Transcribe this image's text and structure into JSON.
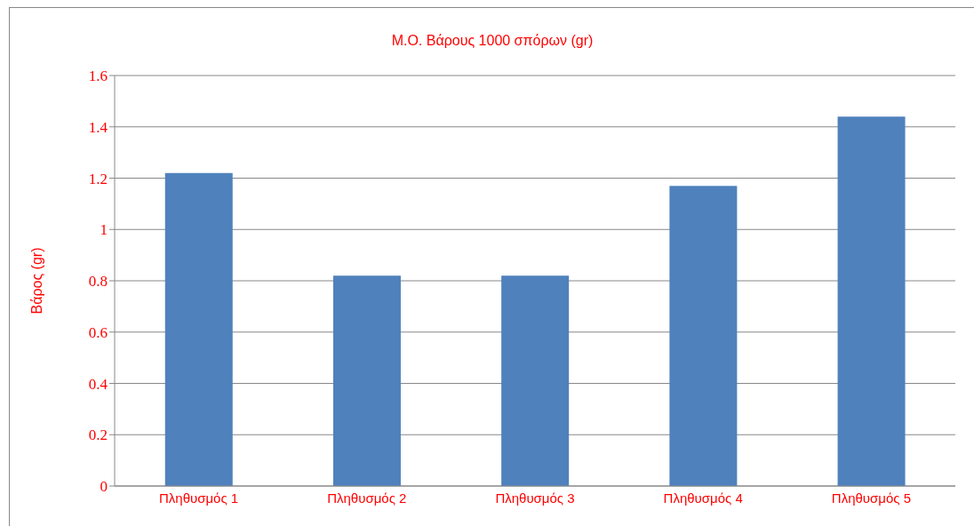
{
  "chart_data": {
    "type": "bar",
    "title": "Μ.Ο. Βάρους 1000 σπόρων (gr)",
    "ylabel": "Βάρος (gr)",
    "categories": [
      "Πληθυσμός 1",
      "Πληθυσμός 2",
      "Πληθυσμός 3",
      "Πληθυσμός 4",
      "Πληθυσμός 5"
    ],
    "values": [
      1.22,
      0.82,
      0.82,
      1.17,
      1.44
    ],
    "color": "#4f81bd",
    "ylim": [
      0,
      1.6
    ],
    "yticks": [
      0,
      0.2,
      0.4,
      0.6,
      0.8,
      1,
      1.2,
      1.4,
      1.6
    ],
    "grid": "y"
  }
}
